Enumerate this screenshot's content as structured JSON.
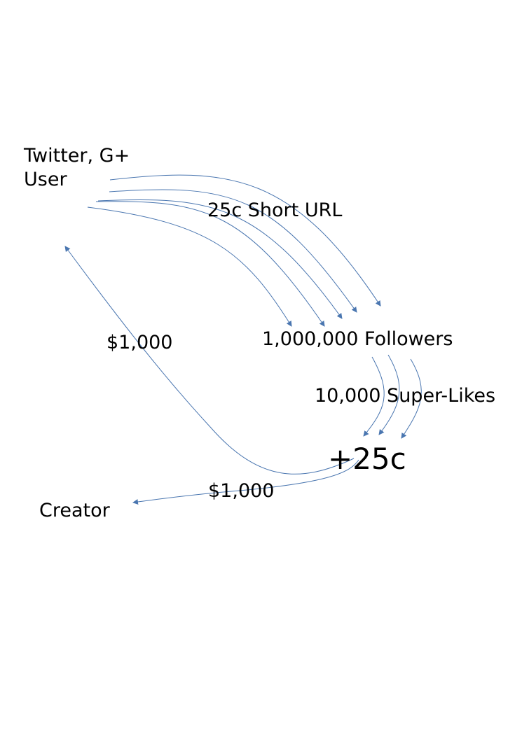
{
  "diagram": {
    "nodes": {
      "user": {
        "line1": "Twitter, G+",
        "line2": "User"
      },
      "followers": "1,000,000 Followers",
      "plus25c": "+25c",
      "creator": "Creator"
    },
    "edge_labels": {
      "short_url": "25c Short URL",
      "super_likes": "10,000 Super-Likes",
      "payback_user": "$1,000",
      "payout_creator": "$1,000"
    },
    "colors": {
      "arrow": "#4a76b0",
      "text": "#000000",
      "background": "#ffffff"
    }
  }
}
